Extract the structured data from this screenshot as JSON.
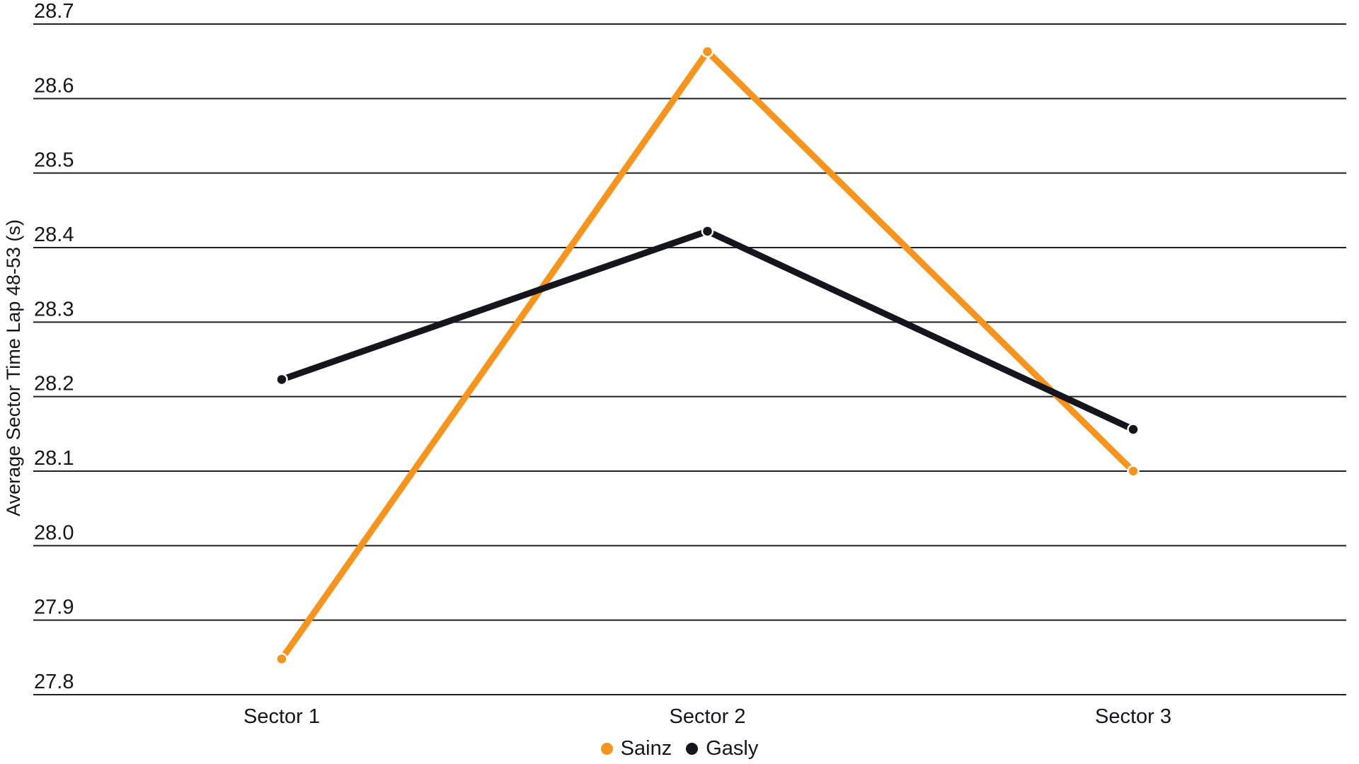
{
  "page": {
    "background": "#ffffff",
    "text_color": "#15151e",
    "grid_color": "#1f1f26"
  },
  "chart_data": {
    "type": "line",
    "categories": [
      "Sector 1",
      "Sector 2",
      "Sector 3"
    ],
    "series": [
      {
        "name": "Sainz",
        "color": "#F7941D",
        "values": [
          27.848,
          28.663,
          28.1
        ]
      },
      {
        "name": "Gasly",
        "color": "#15151E",
        "values": [
          28.223,
          28.422,
          28.156
        ]
      }
    ],
    "ylabel": "Average Sector Time Lap 48-53 (s)",
    "ylim": [
      27.8,
      28.7
    ],
    "ytick_step": 0.1,
    "ytick_format_decimals": 1,
    "grid": "horizontal",
    "legend_position": "bottom-center",
    "marker": "dot"
  }
}
